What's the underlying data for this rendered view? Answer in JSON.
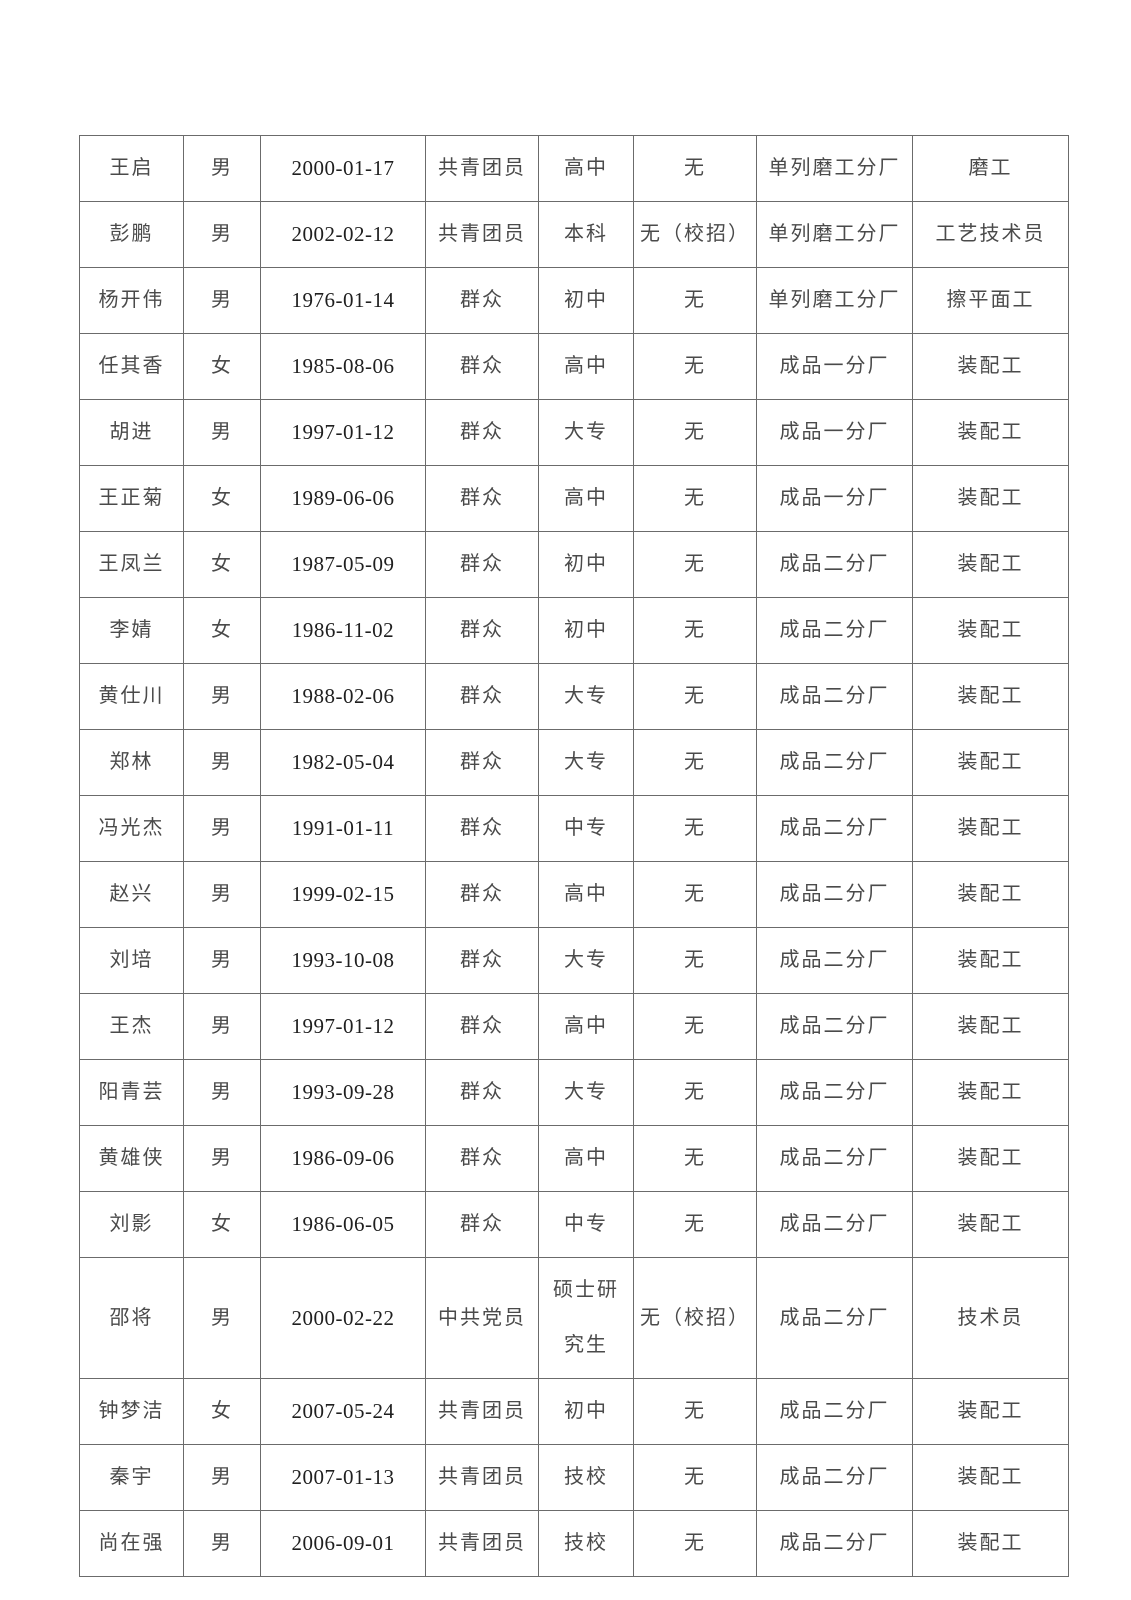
{
  "document": {
    "type": "personnel-roster-table-page",
    "background_color": "#ffffff",
    "border_color": "#6b6b6b",
    "text_color": "#4a4a4a",
    "date_text_color": "#1f1f1f"
  },
  "table": {
    "fields": [
      "name",
      "gender",
      "birth_date",
      "political_status",
      "education",
      "recruitment_note",
      "division",
      "position"
    ],
    "rows": [
      [
        "王启",
        "男",
        "2000-01-17",
        "共青团员",
        "高中",
        "无",
        "单列磨工分厂",
        "磨工"
      ],
      [
        "彭鹏",
        "男",
        "2002-02-12",
        "共青团员",
        "本科",
        "无（校招）",
        "单列磨工分厂",
        "工艺技术员"
      ],
      [
        "杨开伟",
        "男",
        "1976-01-14",
        "群众",
        "初中",
        "无",
        "单列磨工分厂",
        "擦平面工"
      ],
      [
        "任其香",
        "女",
        "1985-08-06",
        "群众",
        "高中",
        "无",
        "成品一分厂",
        "装配工"
      ],
      [
        "胡进",
        "男",
        "1997-01-12",
        "群众",
        "大专",
        "无",
        "成品一分厂",
        "装配工"
      ],
      [
        "王正菊",
        "女",
        "1989-06-06",
        "群众",
        "高中",
        "无",
        "成品一分厂",
        "装配工"
      ],
      [
        "王凤兰",
        "女",
        "1987-05-09",
        "群众",
        "初中",
        "无",
        "成品二分厂",
        "装配工"
      ],
      [
        "李婧",
        "女",
        "1986-11-02",
        "群众",
        "初中",
        "无",
        "成品二分厂",
        "装配工"
      ],
      [
        "黄仕川",
        "男",
        "1988-02-06",
        "群众",
        "大专",
        "无",
        "成品二分厂",
        "装配工"
      ],
      [
        "郑林",
        "男",
        "1982-05-04",
        "群众",
        "大专",
        "无",
        "成品二分厂",
        "装配工"
      ],
      [
        "冯光杰",
        "男",
        "1991-01-11",
        "群众",
        "中专",
        "无",
        "成品二分厂",
        "装配工"
      ],
      [
        "赵兴",
        "男",
        "1999-02-15",
        "群众",
        "高中",
        "无",
        "成品二分厂",
        "装配工"
      ],
      [
        "刘培",
        "男",
        "1993-10-08",
        "群众",
        "大专",
        "无",
        "成品二分厂",
        "装配工"
      ],
      [
        "王杰",
        "男",
        "1997-01-12",
        "群众",
        "高中",
        "无",
        "成品二分厂",
        "装配工"
      ],
      [
        "阳青芸",
        "男",
        "1993-09-28",
        "群众",
        "大专",
        "无",
        "成品二分厂",
        "装配工"
      ],
      [
        "黄雄侠",
        "男",
        "1986-09-06",
        "群众",
        "高中",
        "无",
        "成品二分厂",
        "装配工"
      ],
      [
        "刘影",
        "女",
        "1986-06-05",
        "群众",
        "中专",
        "无",
        "成品二分厂",
        "装配工"
      ],
      [
        "邵将",
        "男",
        "2000-02-22",
        "中共党员",
        "硕士研究生",
        "无（校招）",
        "成品二分厂",
        "技术员"
      ],
      [
        "钟梦洁",
        "女",
        "2007-05-24",
        "共青团员",
        "初中",
        "无",
        "成品二分厂",
        "装配工"
      ],
      [
        "秦宇",
        "男",
        "2007-01-13",
        "共青团员",
        "技校",
        "无",
        "成品二分厂",
        "装配工"
      ],
      [
        "尚在强",
        "男",
        "2006-09-01",
        "共青团员",
        "技校",
        "无",
        "成品二分厂",
        "装配工"
      ]
    ]
  }
}
